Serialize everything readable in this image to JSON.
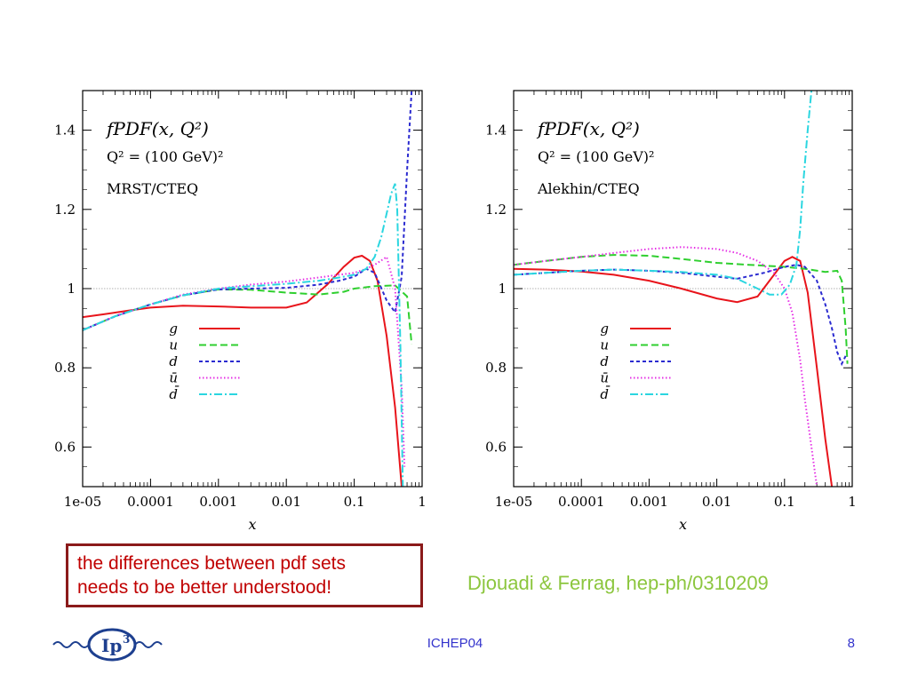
{
  "chart_data": [
    {
      "type": "line",
      "annotation": {
        "line1": "fPDF(x, Q²)",
        "line2": "Q² = (100 GeV)²",
        "line3": "MRST/CTEQ"
      },
      "xlabel": "x",
      "ylabel": "",
      "xscale": "log",
      "xlim": [
        1e-05,
        1
      ],
      "ylim": [
        0.5,
        1.5
      ],
      "x_ticks": [
        "1e-05",
        "0.0001",
        "0.001",
        "0.01",
        "0.1",
        "1"
      ],
      "y_ticks": [
        "0.6",
        "0.8",
        "1",
        "1.2",
        "1.4"
      ],
      "reference_line": 1,
      "legend_position": "center-left",
      "series": [
        {
          "name": "g",
          "color": "#e8141b",
          "dash": "solid",
          "x": [
            1e-05,
            2e-05,
            5e-05,
            0.0001,
            0.0003,
            0.001,
            0.003,
            0.01,
            0.02,
            0.04,
            0.07,
            0.1,
            0.13,
            0.17,
            0.22,
            0.3,
            0.4,
            0.5
          ],
          "y": [
            0.928,
            0.935,
            0.945,
            0.952,
            0.957,
            0.955,
            0.952,
            0.952,
            0.965,
            1.01,
            1.055,
            1.078,
            1.083,
            1.07,
            1.02,
            0.88,
            0.7,
            0.5
          ]
        },
        {
          "name": "u",
          "color": "#2fcf2f",
          "dash": "long",
          "x": [
            1e-05,
            3e-05,
            0.0001,
            0.0003,
            0.001,
            0.003,
            0.01,
            0.03,
            0.07,
            0.1,
            0.2,
            0.4,
            0.6,
            0.7
          ],
          "y": [
            0.895,
            0.93,
            0.96,
            0.983,
            0.998,
            0.997,
            0.99,
            0.985,
            0.992,
            1.0,
            1.006,
            1.008,
            0.98,
            0.86
          ]
        },
        {
          "name": "d",
          "color": "#2b2bd0",
          "dash": "short",
          "x": [
            1e-05,
            3e-05,
            0.0001,
            0.0003,
            0.001,
            0.003,
            0.01,
            0.03,
            0.06,
            0.1,
            0.15,
            0.2,
            0.3,
            0.4,
            0.5,
            0.6,
            0.7
          ],
          "y": [
            0.895,
            0.93,
            0.96,
            0.983,
            0.998,
            1.0,
            1.002,
            1.01,
            1.02,
            1.03,
            1.05,
            1.04,
            0.97,
            0.94,
            1.03,
            1.3,
            1.5
          ]
        },
        {
          "name": "ū",
          "color": "#e52fe5",
          "dash": "dot",
          "x": [
            1e-05,
            3e-05,
            0.0001,
            0.0003,
            0.001,
            0.003,
            0.01,
            0.03,
            0.06,
            0.1,
            0.15,
            0.2,
            0.3,
            0.4,
            0.5,
            0.55
          ],
          "y": [
            0.895,
            0.93,
            0.96,
            0.985,
            1.0,
            1.01,
            1.018,
            1.028,
            1.035,
            1.04,
            1.05,
            1.06,
            1.08,
            1.0,
            0.75,
            0.55
          ]
        },
        {
          "name": "d̄",
          "color": "#2bd6e0",
          "dash": "dashdot",
          "x": [
            1e-05,
            3e-05,
            0.0001,
            0.0003,
            0.001,
            0.003,
            0.01,
            0.03,
            0.06,
            0.1,
            0.15,
            0.2,
            0.25,
            0.3,
            0.35,
            0.4,
            0.43,
            0.48,
            0.52
          ],
          "y": [
            0.895,
            0.93,
            0.96,
            0.983,
            1.0,
            1.006,
            1.012,
            1.02,
            1.028,
            1.035,
            1.05,
            1.08,
            1.13,
            1.19,
            1.24,
            1.265,
            1.2,
            0.85,
            0.5
          ]
        }
      ]
    },
    {
      "type": "line",
      "annotation": {
        "line1": "fPDF(x, Q²)",
        "line2": "Q² = (100 GeV)²",
        "line3": "Alekhin/CTEQ"
      },
      "xlabel": "x",
      "ylabel": "",
      "xscale": "log",
      "xlim": [
        1e-05,
        1
      ],
      "ylim": [
        0.5,
        1.5
      ],
      "x_ticks": [
        "1e-05",
        "0.0001",
        "0.001",
        "0.01",
        "0.1",
        "1"
      ],
      "y_ticks": [
        "0.6",
        "0.8",
        "1",
        "1.2",
        "1.4"
      ],
      "reference_line": 1,
      "legend_position": "center-right",
      "series": [
        {
          "name": "g",
          "color": "#e8141b",
          "dash": "solid",
          "x": [
            1e-05,
            3e-05,
            0.0001,
            0.0003,
            0.001,
            0.003,
            0.01,
            0.02,
            0.04,
            0.07,
            0.1,
            0.13,
            0.17,
            0.22,
            0.3,
            0.4,
            0.5
          ],
          "y": [
            1.05,
            1.048,
            1.043,
            1.035,
            1.02,
            1.0,
            0.975,
            0.966,
            0.98,
            1.035,
            1.07,
            1.08,
            1.07,
            0.99,
            0.8,
            0.62,
            0.5
          ]
        },
        {
          "name": "u",
          "color": "#2fcf2f",
          "dash": "long",
          "x": [
            1e-05,
            3e-05,
            0.0001,
            0.0003,
            0.001,
            0.003,
            0.01,
            0.03,
            0.1,
            0.2,
            0.4,
            0.6,
            0.7,
            0.8,
            0.85
          ],
          "y": [
            1.06,
            1.07,
            1.08,
            1.085,
            1.083,
            1.075,
            1.065,
            1.06,
            1.055,
            1.05,
            1.042,
            1.045,
            1.02,
            0.9,
            0.81
          ]
        },
        {
          "name": "d",
          "color": "#2b2bd0",
          "dash": "short",
          "x": [
            1e-05,
            3e-05,
            0.0001,
            0.0003,
            0.001,
            0.003,
            0.01,
            0.02,
            0.05,
            0.1,
            0.15,
            0.2,
            0.3,
            0.4,
            0.5,
            0.6,
            0.7,
            0.8
          ],
          "y": [
            1.035,
            1.04,
            1.045,
            1.048,
            1.045,
            1.04,
            1.03,
            1.025,
            1.04,
            1.055,
            1.06,
            1.055,
            1.02,
            0.96,
            0.9,
            0.84,
            0.81,
            0.83
          ]
        },
        {
          "name": "ū",
          "color": "#e52fe5",
          "dash": "dot",
          "x": [
            1e-05,
            3e-05,
            0.0001,
            0.0003,
            0.001,
            0.003,
            0.01,
            0.02,
            0.04,
            0.07,
            0.1,
            0.13,
            0.17,
            0.2,
            0.25,
            0.3
          ],
          "y": [
            1.06,
            1.07,
            1.08,
            1.09,
            1.1,
            1.105,
            1.1,
            1.09,
            1.07,
            1.04,
            1.0,
            0.94,
            0.82,
            0.72,
            0.6,
            0.5
          ]
        },
        {
          "name": "d̄",
          "color": "#2bd6e0",
          "dash": "dashdot",
          "x": [
            1e-05,
            3e-05,
            0.0001,
            0.0003,
            0.001,
            0.003,
            0.01,
            0.02,
            0.04,
            0.06,
            0.09,
            0.12,
            0.15,
            0.17,
            0.19,
            0.22,
            0.25
          ],
          "y": [
            1.035,
            1.04,
            1.045,
            1.048,
            1.045,
            1.042,
            1.035,
            1.025,
            1.0,
            0.985,
            0.985,
            1.01,
            1.06,
            1.15,
            1.27,
            1.4,
            1.5
          ]
        }
      ]
    }
  ],
  "callout": {
    "line1": "the differences between pdf sets",
    "line2": "needs to be better understood!"
  },
  "citation": "Djouadi & Ferrag, hep-ph/0310209",
  "footer": {
    "center": "ICHEP04",
    "page": "8",
    "logo_text": "Ip",
    "logo_sup": "3"
  },
  "colors": {
    "callout_border": "#8b1a1a",
    "callout_text": "#c00000",
    "citation": "#8cc63e",
    "footer_text": "#3333cc"
  }
}
